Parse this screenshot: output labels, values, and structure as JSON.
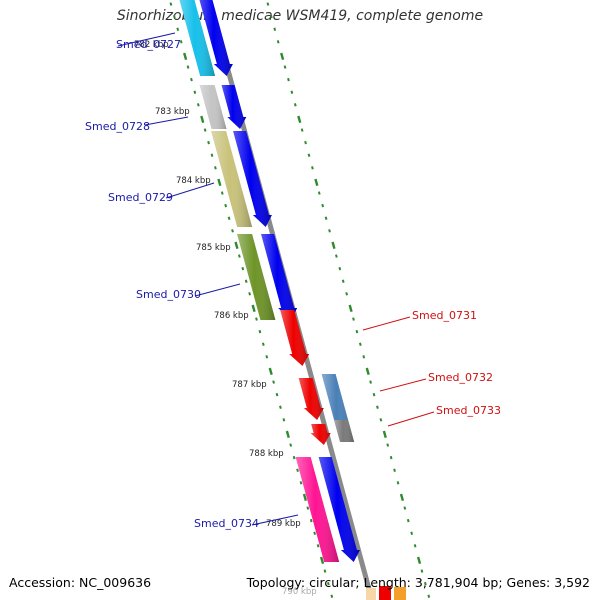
{
  "header": {
    "title": "Sinorhizobium medicae WSM419, complete genome"
  },
  "footer": {
    "accession": "Accession: NC_009636",
    "summary": "Topology: circular; Length: 3,781,904 bp; Genes: 3,592"
  },
  "map": {
    "colors": {
      "backbone": "#888888",
      "tick": "#2e8b2e",
      "label_left": "#1a1aa8",
      "label_right": "#d01010",
      "strand_plus": "#0000ee",
      "strand_minus": "#ee0000"
    },
    "kbp_labels": [
      "782 kbp",
      "783 kbp",
      "784 kbp",
      "785 kbp",
      "786 kbp",
      "787 kbp",
      "788 kbp",
      "789 kbp",
      "790 kbp"
    ],
    "genes": [
      {
        "name": "Smed_0727",
        "strand": "+",
        "color": "#17c0ea"
      },
      {
        "name": "Smed_0728",
        "strand": "+",
        "color": "#c4c4c4"
      },
      {
        "name": "Smed_0729",
        "strand": "+",
        "color": "#c8c27a"
      },
      {
        "name": "Smed_0730",
        "strand": "+",
        "color": "#6e9428"
      },
      {
        "name": "Smed_0731",
        "strand": "-",
        "color": "#ee0000"
      },
      {
        "name": "Smed_0732",
        "strand": "-",
        "color": "#4a80b8"
      },
      {
        "name": "Smed_0733",
        "strand": "-",
        "color": "#7a7a7a"
      },
      {
        "name": "Smed_0734",
        "strand": "+",
        "color": "#ff1493"
      }
    ]
  }
}
